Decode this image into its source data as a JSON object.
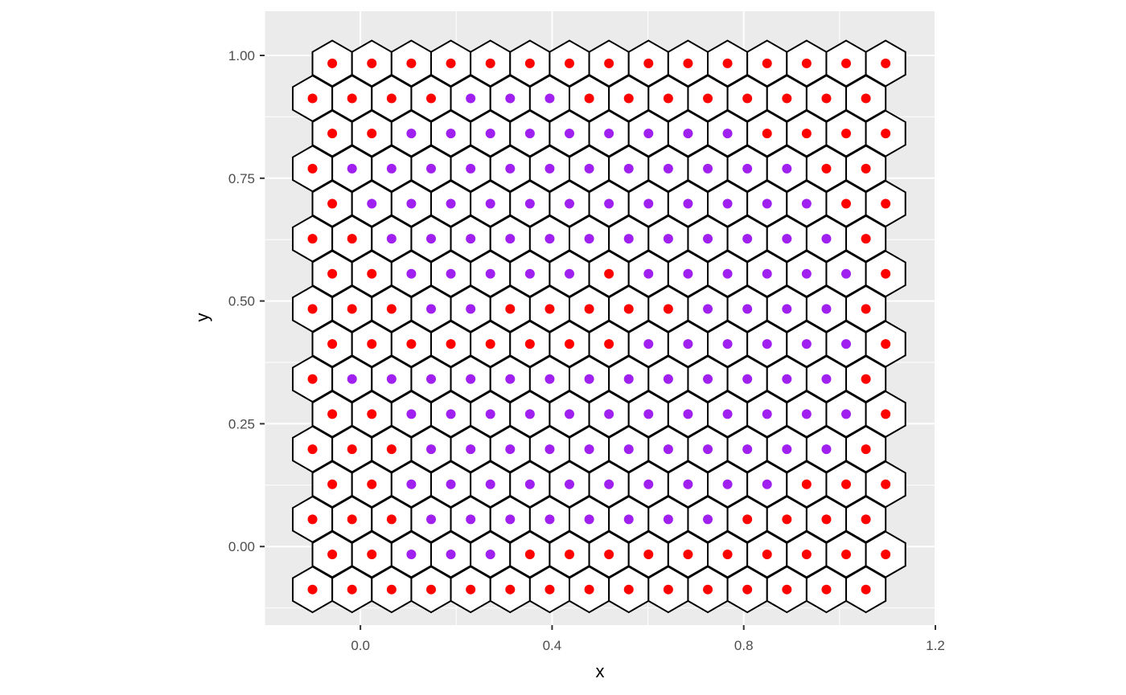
{
  "chart_data": {
    "type": "scatter",
    "title": "",
    "xlabel": "x",
    "ylabel": "y",
    "xlim": [
      -0.2,
      1.2
    ],
    "ylim": [
      -0.16,
      1.09
    ],
    "x_ticks": [
      0.0,
      0.4,
      0.8,
      1.2
    ],
    "x_tick_labels": [
      "0.0",
      "0.4",
      "0.8",
      "1.2"
    ],
    "y_ticks": [
      0.0,
      0.25,
      0.5,
      0.75,
      1.0
    ],
    "y_tick_labels": [
      "0.00",
      "0.25",
      "0.50",
      "0.75",
      "1.00"
    ],
    "grid": true,
    "background": "#ebebeb",
    "grid_color": "#ffffff",
    "hexagon_fill": "#ffffff",
    "hexagon_stroke": "#000000",
    "colors": {
      "R": "#ff0000",
      "P": "#a020f0"
    },
    "hex_grid": {
      "row_y": [
        -0.0875,
        -0.0161,
        0.0554,
        0.1268,
        0.1982,
        0.2696,
        0.3411,
        0.4125,
        0.4839,
        0.5554,
        0.6268,
        0.6982,
        0.7696,
        0.8411,
        0.9125,
        0.9839
      ],
      "even_row_x": [
        -0.1,
        -0.0175,
        0.065,
        0.1475,
        0.23,
        0.3125,
        0.395,
        0.4775,
        0.56,
        0.6425,
        0.725,
        0.8075,
        0.89,
        0.9725,
        1.055
      ],
      "odd_row_x": [
        -0.0588,
        0.0237,
        0.1062,
        0.1887,
        0.2712,
        0.3537,
        0.4362,
        0.5187,
        0.6012,
        0.6837,
        0.7662,
        0.8487,
        0.9312,
        1.0137,
        1.0962
      ],
      "point_class_rows": [
        "RRRRRRRRRRRRRRR",
        "RRPPPRRRRRRRRRR",
        "RRRPPPPPPPPRRRR",
        "RRPPPPPPPPPPRRR",
        "RRRPPPPPPPPPPPR",
        "RRPPPPPPPPPPPPR",
        "RPPPPPPPPPPPPPR",
        "RRRRRRRRPPPPPPR",
        "RRRPPRRRRRPPPPR",
        "RRPPPPPRPPPPPPR",
        "RRPPPPPPPPPPPPR",
        "RPPPPPPPPPPPPRR",
        "RPPPPPPPPPPPPRR",
        "RRPPPPPPPPPRRRR",
        "RRRRPPPRRRRRRRR",
        "RRRRRRRRRRRRRRR"
      ]
    }
  }
}
